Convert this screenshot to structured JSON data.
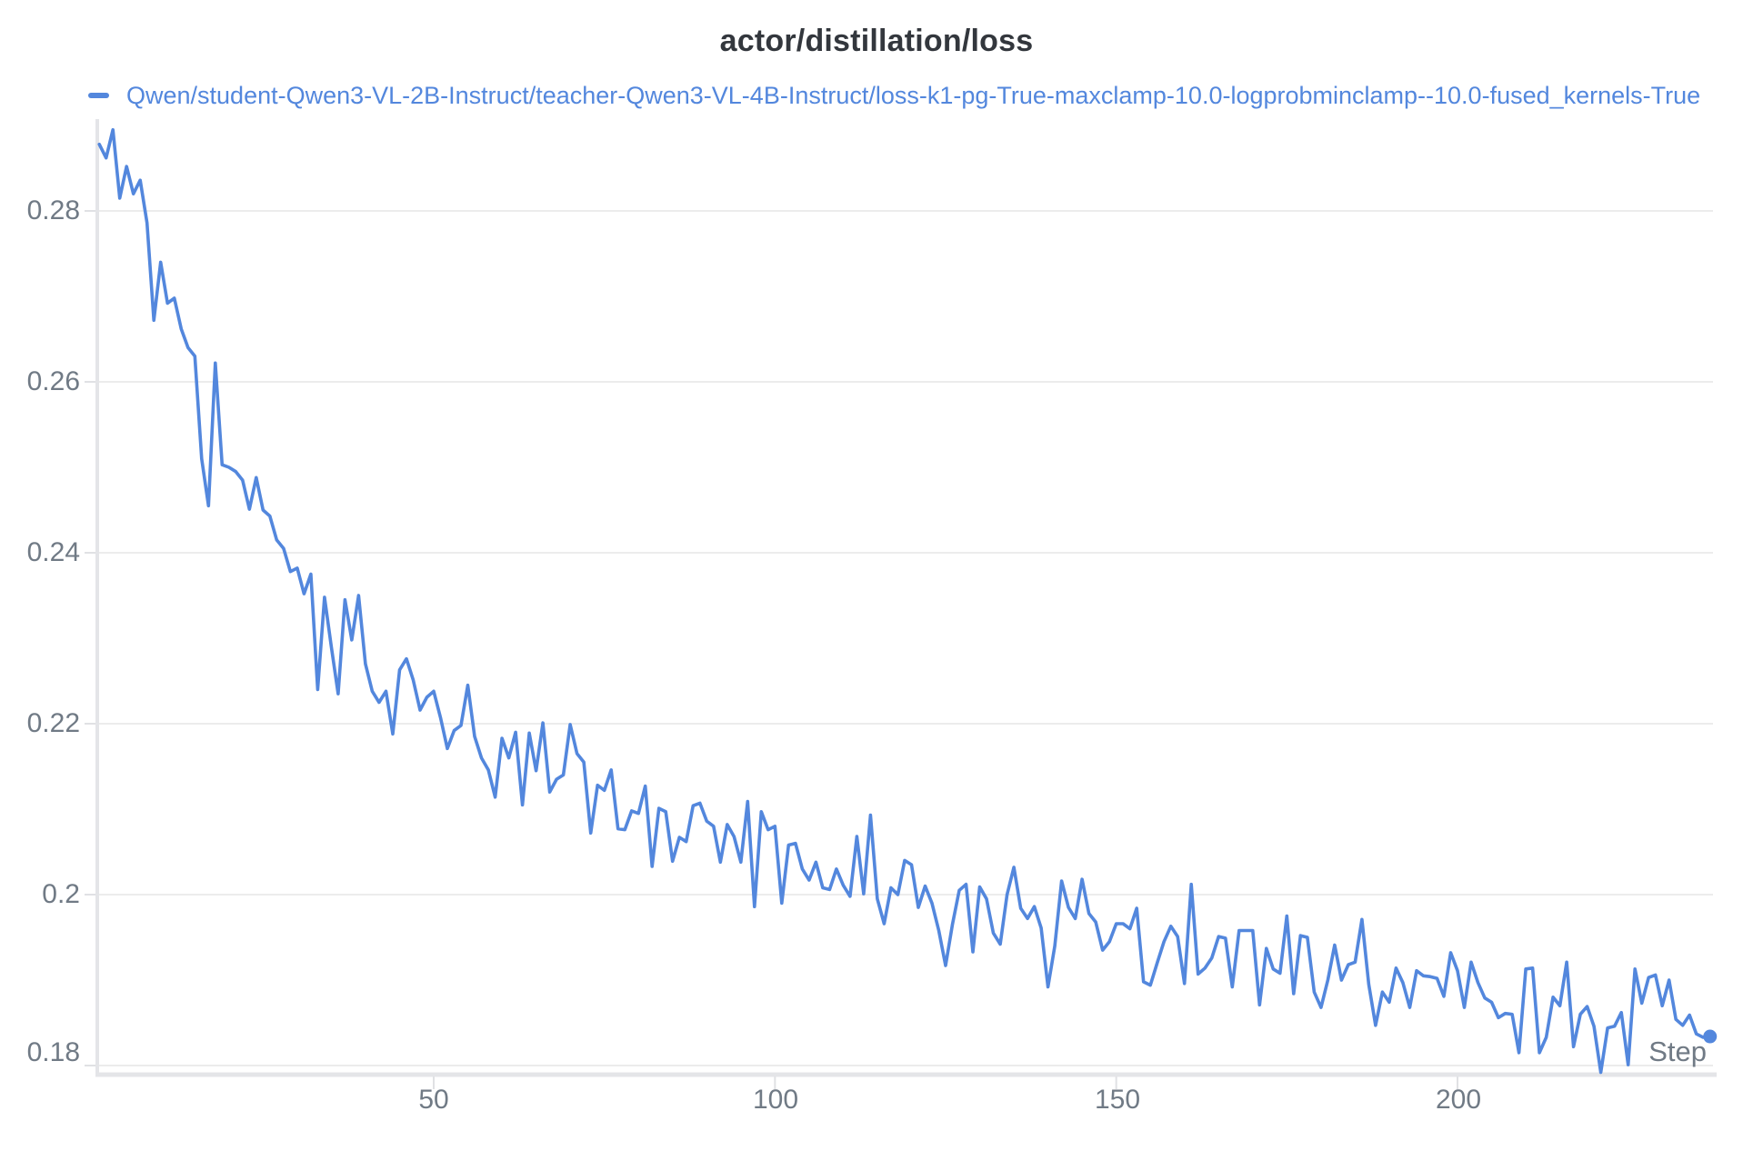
{
  "page": {
    "background": "#ffffff"
  },
  "header": {
    "title": "actor/distillation/loss"
  },
  "legend": {
    "label": "Qwen/student-Qwen3-VL-2B-Instruct/teacher-Qwen3-VL-4B-Instruct/loss-k1-pg-True-maxclamp-10.0-logprobminclamp--10.0-fused_kernels-True",
    "color": "#5387dd",
    "text_color": "#5387dd"
  },
  "colors": {
    "line": "#5387dd",
    "gridline": "#ececec",
    "axis_line": "#e4e5e8",
    "tick_mark": "#e0e1e4",
    "tick_text": "#707a85",
    "title_text": "#33373d",
    "background": "#ffffff"
  },
  "chart_data": {
    "type": "line",
    "title": "actor/distillation/loss",
    "xlabel": "Step",
    "ylabel": "",
    "grid": "horizontal",
    "legend_position": "top-left",
    "xlim": [
      0.5,
      237.5
    ],
    "ylim": [
      0.179,
      0.2907
    ],
    "x_tick_values": [
      50,
      100,
      150,
      200
    ],
    "x_tick_labels": [
      "50",
      "100",
      "150",
      "200"
    ],
    "y_tick_values": [
      0.28,
      0.26,
      0.24,
      0.22,
      0.2,
      0.18
    ],
    "y_tick_labels": [
      "0.28",
      "0.26",
      "0.24",
      "0.22",
      "0.2",
      "0.18"
    ],
    "x_start": 1,
    "x_step_increment": 1,
    "x_end": 237,
    "series": [
      {
        "name": "Qwen/student-Qwen3-VL-2B-Instruct/teacher-Qwen3-VL-4B-Instruct/loss-k1-pg-True-maxclamp-10.0-logprobminclamp--10.0-fused_kernels-True",
        "color": "#5387dd",
        "end_marker": "dot",
        "values": [
          0.2878,
          0.2862,
          0.2895,
          0.2815,
          0.2852,
          0.282,
          0.2836,
          0.2786,
          0.2672,
          0.274,
          0.2692,
          0.2698,
          0.2662,
          0.264,
          0.263,
          0.251,
          0.2455,
          0.2622,
          0.2503,
          0.25,
          0.2495,
          0.2485,
          0.2451,
          0.2488,
          0.245,
          0.2443,
          0.2415,
          0.2405,
          0.2378,
          0.2382,
          0.2352,
          0.2375,
          0.224,
          0.2348,
          0.229,
          0.2235,
          0.2345,
          0.2298,
          0.235,
          0.227,
          0.2238,
          0.2225,
          0.2238,
          0.2188,
          0.2263,
          0.2276,
          0.2251,
          0.2216,
          0.2231,
          0.2238,
          0.2207,
          0.2171,
          0.2192,
          0.2198,
          0.2245,
          0.2185,
          0.216,
          0.2146,
          0.2114,
          0.2183,
          0.216,
          0.219,
          0.2105,
          0.2189,
          0.2145,
          0.2201,
          0.212,
          0.2135,
          0.214,
          0.2199,
          0.2165,
          0.2155,
          0.2072,
          0.2128,
          0.2122,
          0.2146,
          0.2077,
          0.2076,
          0.2098,
          0.2095,
          0.2127,
          0.2033,
          0.2101,
          0.2097,
          0.2039,
          0.2067,
          0.2062,
          0.2104,
          0.2107,
          0.2086,
          0.208,
          0.2038,
          0.2082,
          0.2068,
          0.2038,
          0.2109,
          0.1986,
          0.2097,
          0.2076,
          0.208,
          0.199,
          0.2058,
          0.206,
          0.203,
          0.2017,
          0.2038,
          0.2008,
          0.2006,
          0.203,
          0.2011,
          0.1998,
          0.2068,
          0.2001,
          0.2093,
          0.1995,
          0.1966,
          0.2008,
          0.2,
          0.204,
          0.2035,
          0.1985,
          0.201,
          0.199,
          0.1958,
          0.1917,
          0.1965,
          0.2005,
          0.2012,
          0.1933,
          0.2009,
          0.1995,
          0.1955,
          0.1942,
          0.2,
          0.2032,
          0.1984,
          0.1972,
          0.1986,
          0.1961,
          0.1892,
          0.194,
          0.2016,
          0.1985,
          0.1972,
          0.2018,
          0.1978,
          0.1968,
          0.1935,
          0.1945,
          0.1966,
          0.1966,
          0.196,
          0.1984,
          0.1898,
          0.1894,
          0.192,
          0.1945,
          0.1963,
          0.1951,
          0.1896,
          0.2012,
          0.1907,
          0.1914,
          0.1926,
          0.1951,
          0.1949,
          0.1892,
          0.1958,
          0.1958,
          0.1958,
          0.1871,
          0.1937,
          0.1913,
          0.1908,
          0.1975,
          0.1884,
          0.1952,
          0.195,
          0.1886,
          0.1868,
          0.19,
          0.1941,
          0.19,
          0.1918,
          0.1921,
          0.1971,
          0.1895,
          0.1847,
          0.1886,
          0.1874,
          0.1914,
          0.1897,
          0.1868,
          0.1911,
          0.1905,
          0.1904,
          0.1902,
          0.1881,
          0.1932,
          0.1911,
          0.1868,
          0.1921,
          0.1897,
          0.1879,
          0.1874,
          0.1856,
          0.1861,
          0.186,
          0.1815,
          0.1913,
          0.1914,
          0.1815,
          0.1833,
          0.188,
          0.187,
          0.1921,
          0.1822,
          0.186,
          0.1869,
          0.1846,
          0.1792,
          0.1844,
          0.1846,
          0.1862,
          0.1801,
          0.1913,
          0.1873,
          0.1903,
          0.1906,
          0.187,
          0.19,
          0.1854,
          0.1847,
          0.1859,
          0.1837,
          0.1833,
          0.1834
        ]
      }
    ]
  }
}
